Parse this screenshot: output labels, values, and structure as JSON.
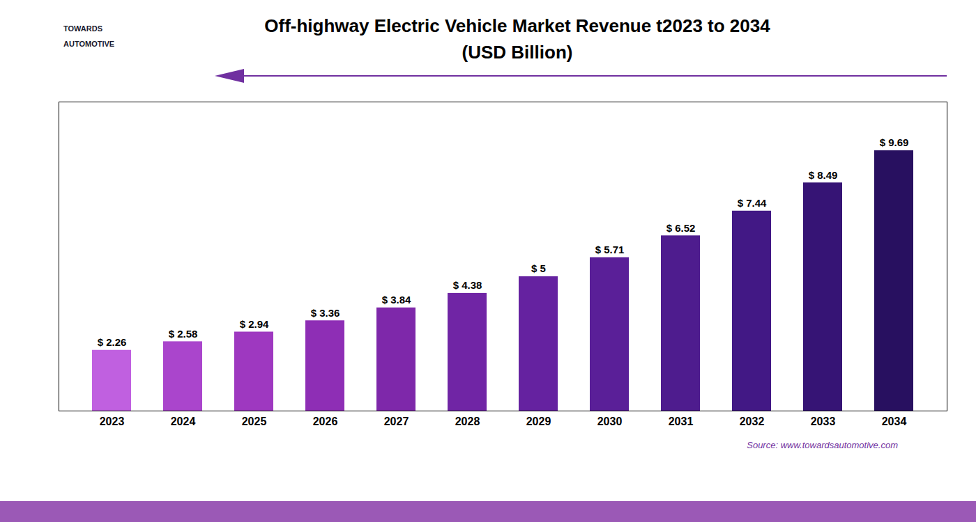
{
  "chart_data": {
    "type": "bar",
    "title": "Off-highway Electric Vehicle Market Revenue t2023 to 2034",
    "subtitle": "(USD Billion)",
    "categories": [
      "2023",
      "2024",
      "2025",
      "2026",
      "2027",
      "2028",
      "2029",
      "2030",
      "2031",
      "2032",
      "2033",
      "2034"
    ],
    "values": [
      2.26,
      2.58,
      2.94,
      3.36,
      3.84,
      4.38,
      5.0,
      5.71,
      6.52,
      7.44,
      8.49,
      9.69
    ],
    "value_labels": [
      "$ 2.26",
      "$ 2.58",
      "$ 2.94",
      "$ 3.36",
      "$ 3.84",
      "$ 4.38",
      "$ 5",
      "$ 5.71",
      "$ 6.52",
      "$ 7.44",
      "$ 8.49",
      "$ 9.69"
    ],
    "data_labels": true,
    "colors": [
      "#c060e0",
      "#aa45cc",
      "#9e38c0",
      "#8e2eb5",
      "#7e28aa",
      "#7025a5",
      "#6522a0",
      "#5a1f98",
      "#4e1c8e",
      "#421885",
      "#361475",
      "#281060"
    ],
    "ylim": [
      0,
      11.5
    ],
    "grid": false,
    "tick_labels": "x",
    "annotations": [
      "TOWARDS",
      "AUTOMOTIVE",
      "Source: www.towardsautomotive.com"
    ]
  }
}
